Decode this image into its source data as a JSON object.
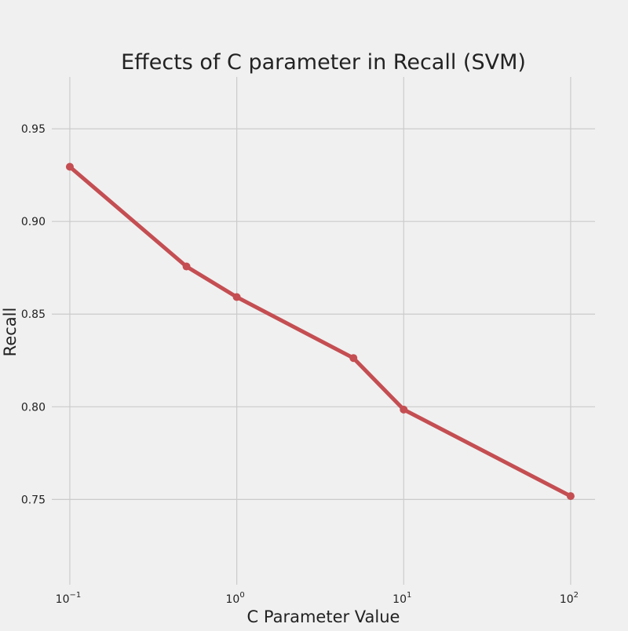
{
  "chart_data": {
    "type": "line",
    "title": "Effects of C parameter in Recall (SVM)",
    "xlabel": "C Parameter Value",
    "ylabel": "Recall",
    "xscale": "log",
    "x": [
      0.1,
      0.5,
      1,
      5,
      10,
      100
    ],
    "series": [
      {
        "values": [
          0.9295,
          0.8757,
          0.8592,
          0.8263,
          0.7985,
          0.7518
        ],
        "color": "#c44e52"
      }
    ],
    "xlim": [
      0.078,
      140
    ],
    "ylim": [
      0.704,
      0.978
    ],
    "xticks": [
      {
        "value": 0.1,
        "base": "10",
        "exp": "−1"
      },
      {
        "value": 1,
        "base": "10",
        "exp": "0"
      },
      {
        "value": 10,
        "base": "10",
        "exp": "1"
      },
      {
        "value": 100,
        "base": "10",
        "exp": "2"
      }
    ],
    "yticks": [
      "0.75",
      "0.80",
      "0.85",
      "0.90",
      "0.95"
    ],
    "grid": true,
    "background": "#f0f0f0"
  }
}
